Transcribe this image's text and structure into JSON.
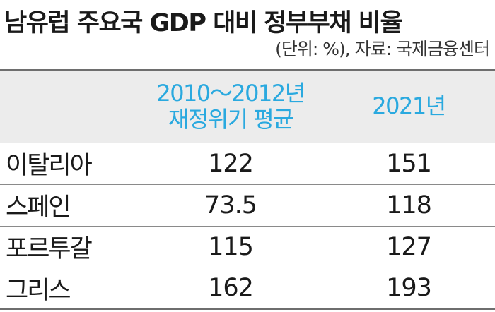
{
  "title": "남유럽 주요국 GDP 대비 정부부채 비율",
  "source_note": "(단위: %), 자료: 국제금융센터",
  "chart_data": {
    "type": "table",
    "title": "남유럽 주요국 GDP 대비 정부부채 비율",
    "unit": "%",
    "columns": [
      {
        "line1": "2010～2012년",
        "line2": "재정위기 평균"
      },
      {
        "line1": "2021년",
        "line2": ""
      }
    ],
    "rows": [
      {
        "country": "이탈리아",
        "values": [
          "122",
          "151"
        ]
      },
      {
        "country": "스페인",
        "values": [
          "73.5",
          "118"
        ]
      },
      {
        "country": "포르투갈",
        "values": [
          "115",
          "127"
        ]
      },
      {
        "country": "그리스",
        "values": [
          "162",
          "193"
        ]
      }
    ],
    "colors": {
      "header_text": "#2aa9df",
      "header_bg": "#ececec",
      "body_text": "#1a1a1a"
    }
  }
}
